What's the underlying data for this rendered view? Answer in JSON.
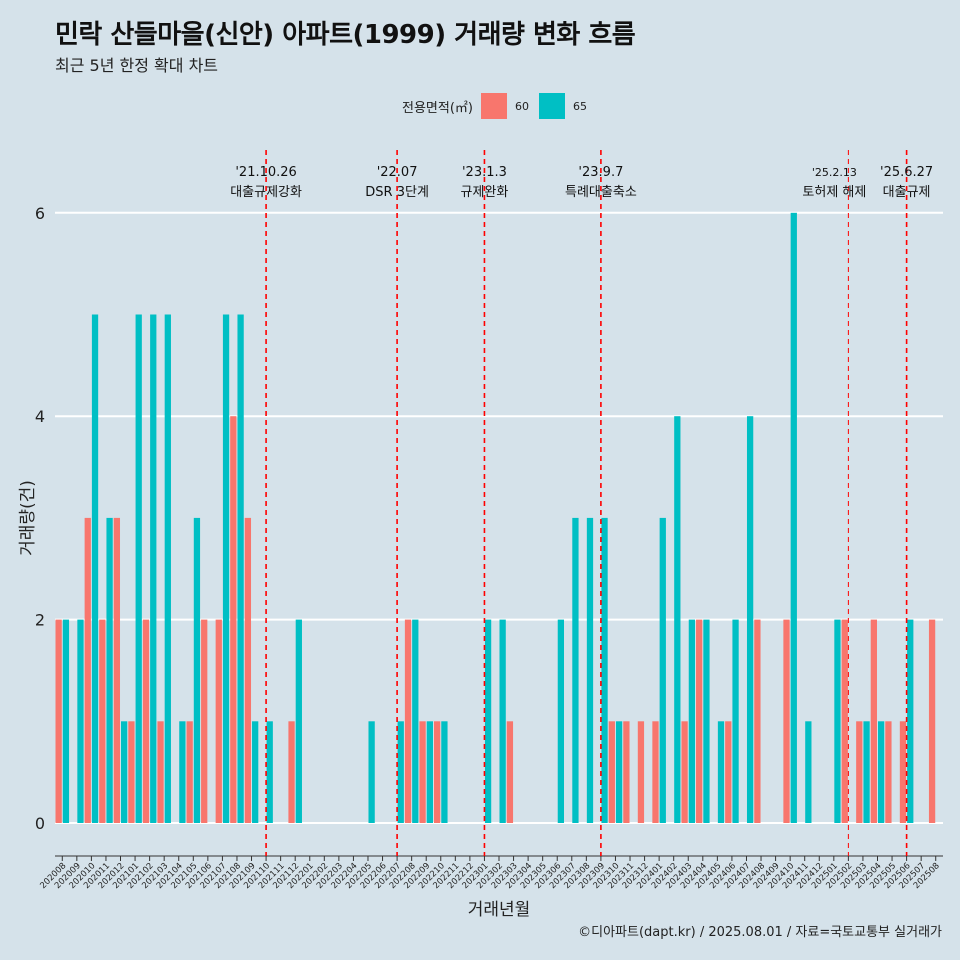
{
  "title": "민락 산들마을(신안) 아파트(1999) 거래량 변화 흐름",
  "subtitle": "최근 5년 한정 확대 차트",
  "legend": {
    "title": "전용면적(㎡)",
    "items": [
      {
        "label": "60",
        "color": "#f8766d"
      },
      {
        "label": "65",
        "color": "#00bfc4"
      }
    ]
  },
  "caption": "©디아파트(dapt.kr) / 2025.08.01 / 자료=국토교통부 실거래가",
  "chart_data": {
    "type": "bar",
    "title": "민락 산들마을(신안) 아파트(1999) 거래량 변화 흐름",
    "subtitle": "최근 5년 한정 확대 차트",
    "xlabel": "거래년월",
    "ylabel": "거래량(건)",
    "ylim": [
      0,
      6
    ],
    "yticks": [
      0,
      2,
      4,
      6
    ],
    "categories": [
      "202008",
      "202009",
      "202010",
      "202011",
      "202012",
      "202101",
      "202102",
      "202103",
      "202104",
      "202105",
      "202106",
      "202107",
      "202108",
      "202109",
      "202110",
      "202111",
      "202112",
      "202201",
      "202202",
      "202203",
      "202204",
      "202205",
      "202206",
      "202207",
      "202208",
      "202209",
      "202210",
      "202211",
      "202212",
      "202301",
      "202302",
      "202303",
      "202304",
      "202305",
      "202306",
      "202307",
      "202308",
      "202309",
      "202310",
      "202311",
      "202312",
      "202401",
      "202402",
      "202403",
      "202404",
      "202405",
      "202406",
      "202407",
      "202408",
      "202409",
      "202410",
      "202411",
      "202412",
      "202501",
      "202502",
      "202503",
      "202504",
      "202505",
      "202506",
      "202507",
      "202508"
    ],
    "series": [
      {
        "name": "60",
        "color": "#f8766d",
        "values": [
          2,
          0,
          3,
          2,
          3,
          1,
          2,
          1,
          0,
          1,
          2,
          2,
          4,
          3,
          0,
          0,
          1,
          0,
          0,
          0,
          0,
          0,
          0,
          0,
          2,
          1,
          1,
          0,
          0,
          0,
          0,
          1,
          0,
          0,
          0,
          0,
          0,
          0,
          1,
          1,
          1,
          1,
          0,
          1,
          2,
          0,
          1,
          0,
          2,
          0,
          2,
          0,
          0,
          0,
          2,
          1,
          2,
          1,
          1,
          0,
          2
        ]
      },
      {
        "name": "65",
        "color": "#00bfc4",
        "values": [
          2,
          2,
          5,
          3,
          1,
          5,
          5,
          5,
          1,
          3,
          0,
          5,
          5,
          1,
          1,
          0,
          2,
          0,
          0,
          0,
          0,
          1,
          0,
          1,
          2,
          1,
          1,
          0,
          0,
          2,
          2,
          0,
          0,
          0,
          2,
          3,
          3,
          3,
          1,
          0,
          0,
          3,
          4,
          2,
          2,
          1,
          2,
          4,
          0,
          0,
          6,
          1,
          0,
          2,
          0,
          1,
          1,
          0,
          2,
          0,
          0
        ]
      }
    ],
    "events": [
      {
        "category": "202110",
        "date": "'21.10.26",
        "label": "대출규제강화"
      },
      {
        "category": "202207",
        "date": "'22.07",
        "label": "DSR 3단계"
      },
      {
        "category": "202301",
        "date": "'23.1.3",
        "label": "규제완화"
      },
      {
        "category": "202309",
        "date": "'23.9.7",
        "label": "특례대출축소"
      },
      {
        "category": "202502",
        "date": "'25.2.13",
        "label": "토허제 해제"
      },
      {
        "category": "202506",
        "date": "'25.6.27",
        "label": "대출규제"
      }
    ],
    "grid": true,
    "legend_position": "top"
  }
}
